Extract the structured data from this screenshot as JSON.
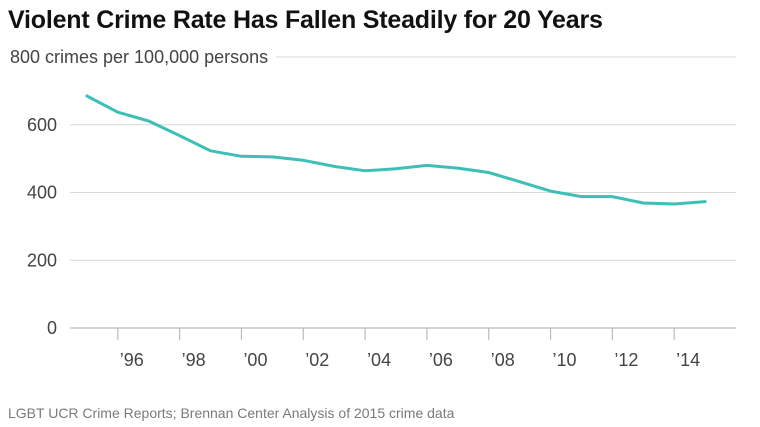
{
  "chart_data": {
    "type": "line",
    "title": "Violent Crime Rate Has Fallen Steadily for 20 Years",
    "ylabel": "crimes per 100,000 persons",
    "source": "LGBT UCR Crime Reports; Brennan Center Analysis of 2015 crime data",
    "x": [
      1995,
      1996,
      1997,
      1998,
      1999,
      2000,
      2001,
      2002,
      2003,
      2004,
      2005,
      2006,
      2007,
      2008,
      2009,
      2010,
      2011,
      2012,
      2013,
      2014,
      2015
    ],
    "series": [
      {
        "values": [
          685,
          637,
          611,
          568,
          523,
          507,
          505,
          495,
          477,
          464,
          470,
          480,
          472,
          459,
          432,
          404,
          388,
          388,
          369,
          366,
          373
        ]
      }
    ],
    "xlim": [
      1994,
      2016
    ],
    "ylim": [
      0,
      800
    ],
    "y_ticks": [
      0,
      200,
      400,
      600,
      800
    ],
    "y_tick_labels": [
      "0",
      "200",
      "400",
      "600",
      "800"
    ],
    "x_ticks": [
      1996,
      1998,
      2000,
      2002,
      2004,
      2006,
      2008,
      2010,
      2012,
      2014
    ],
    "x_tick_labels": [
      "’96",
      "’98",
      "’00",
      "’02",
      "’04",
      "’06",
      "’08",
      "’10",
      "’12",
      "’14"
    ],
    "grid": true,
    "line_color": "#3dbfb8",
    "grid_color": "#d9d9d9",
    "axis_color": "#bbbbbb"
  }
}
